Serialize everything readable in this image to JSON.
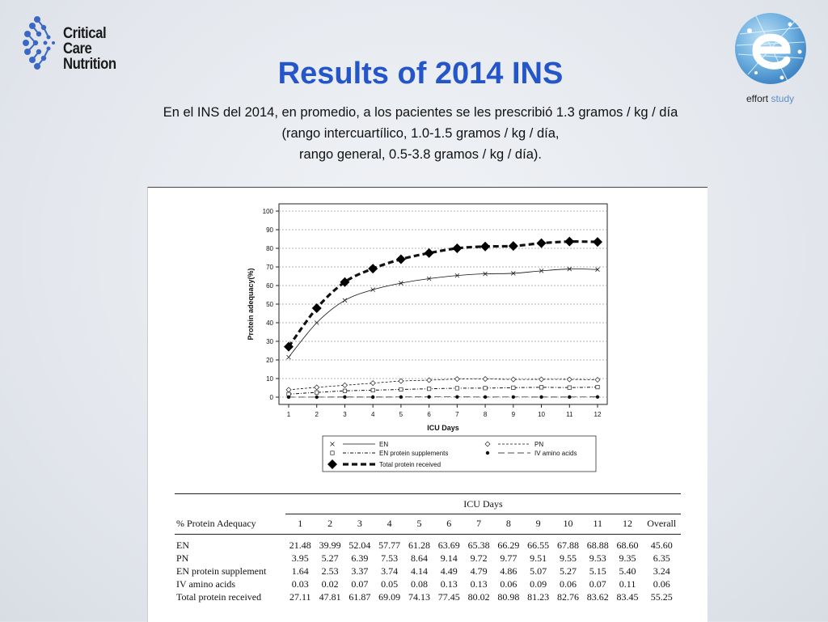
{
  "logo_left": {
    "line1": "Critical Care",
    "line2": "Nutrition"
  },
  "logo_right": {
    "bold": "effort",
    "light": " study"
  },
  "title": "Results of 2014 INS",
  "subtitle_lines": [
    "En el INS del 2014, en promedio, a los pacientes se les prescribió 1.3 gramos / kg / día",
    "(rango intercuartílico, 1.0-1.5 gramos / kg / día,",
    "rango general, 0.5-3.8 gramos / kg / día)."
  ],
  "chart_data": {
    "type": "line",
    "xlabel": "ICU Days",
    "ylabel": "Protein adequacy(%)",
    "x": [
      1,
      2,
      3,
      4,
      5,
      6,
      7,
      8,
      9,
      10,
      11,
      12
    ],
    "ylim": [
      0,
      100
    ],
    "yticks": [
      0,
      10,
      20,
      30,
      40,
      50,
      60,
      70,
      80,
      90,
      100
    ],
    "grid": "horizontal dashed",
    "legend_position": "below",
    "series": [
      {
        "name": "EN",
        "marker": "x",
        "line": "solid",
        "values": [
          21.48,
          39.99,
          52.04,
          57.77,
          61.28,
          63.69,
          65.38,
          66.29,
          66.55,
          67.88,
          68.88,
          68.6
        ]
      },
      {
        "name": "PN",
        "marker": "diamond-open",
        "line": "dashed",
        "values": [
          3.95,
          5.27,
          6.39,
          7.53,
          8.64,
          9.14,
          9.72,
          9.77,
          9.51,
          9.55,
          9.53,
          9.35
        ]
      },
      {
        "name": "EN protein supplements",
        "marker": "square-open",
        "line": "dash-dot",
        "values": [
          1.64,
          2.53,
          3.37,
          3.74,
          4.14,
          4.49,
          4.79,
          4.86,
          5.07,
          5.27,
          5.15,
          5.4
        ]
      },
      {
        "name": "IV amino acids",
        "marker": "dot",
        "line": "long-dash",
        "values": [
          0.03,
          0.02,
          0.07,
          0.05,
          0.08,
          0.13,
          0.13,
          0.06,
          0.09,
          0.06,
          0.07,
          0.11
        ]
      },
      {
        "name": "Total protein received",
        "marker": "diamond-filled",
        "line": "thick-dashed",
        "values": [
          27.11,
          47.81,
          61.87,
          69.09,
          74.13,
          77.45,
          80.02,
          80.98,
          81.23,
          82.76,
          83.62,
          83.45
        ]
      }
    ]
  },
  "table": {
    "group_header": "ICU Days",
    "row_header": "% Protein Adequacy",
    "columns": [
      "1",
      "2",
      "3",
      "4",
      "5",
      "6",
      "7",
      "8",
      "9",
      "10",
      "11",
      "12",
      "Overall"
    ],
    "rows": [
      {
        "label": "EN",
        "values": [
          "21.48",
          "39.99",
          "52.04",
          "57.77",
          "61.28",
          "63.69",
          "65.38",
          "66.29",
          "66.55",
          "67.88",
          "68.88",
          "68.60",
          "45.60"
        ]
      },
      {
        "label": "PN",
        "values": [
          "3.95",
          "5.27",
          "6.39",
          "7.53",
          "8.64",
          "9.14",
          "9.72",
          "9.77",
          "9.51",
          "9.55",
          "9.53",
          "9.35",
          "6.35"
        ]
      },
      {
        "label": "EN protein supplement",
        "values": [
          "1.64",
          "2.53",
          "3.37",
          "3.74",
          "4.14",
          "4.49",
          "4.79",
          "4.86",
          "5.07",
          "5.27",
          "5.15",
          "5.40",
          "3.24"
        ]
      },
      {
        "label": "IV amino acids",
        "values": [
          "0.03",
          "0.02",
          "0.07",
          "0.05",
          "0.08",
          "0.13",
          "0.13",
          "0.06",
          "0.09",
          "0.06",
          "0.07",
          "0.11",
          "0.06"
        ]
      },
      {
        "label": "Total protein received",
        "values": [
          "27.11",
          "47.81",
          "61.87",
          "69.09",
          "74.13",
          "77.45",
          "80.02",
          "80.98",
          "81.23",
          "82.76",
          "83.62",
          "83.45",
          "55.25"
        ]
      }
    ]
  },
  "colors": {
    "title": "#2455c9",
    "logo_blue": "#3b67c4",
    "effort_blue": "#5a8fc8"
  }
}
